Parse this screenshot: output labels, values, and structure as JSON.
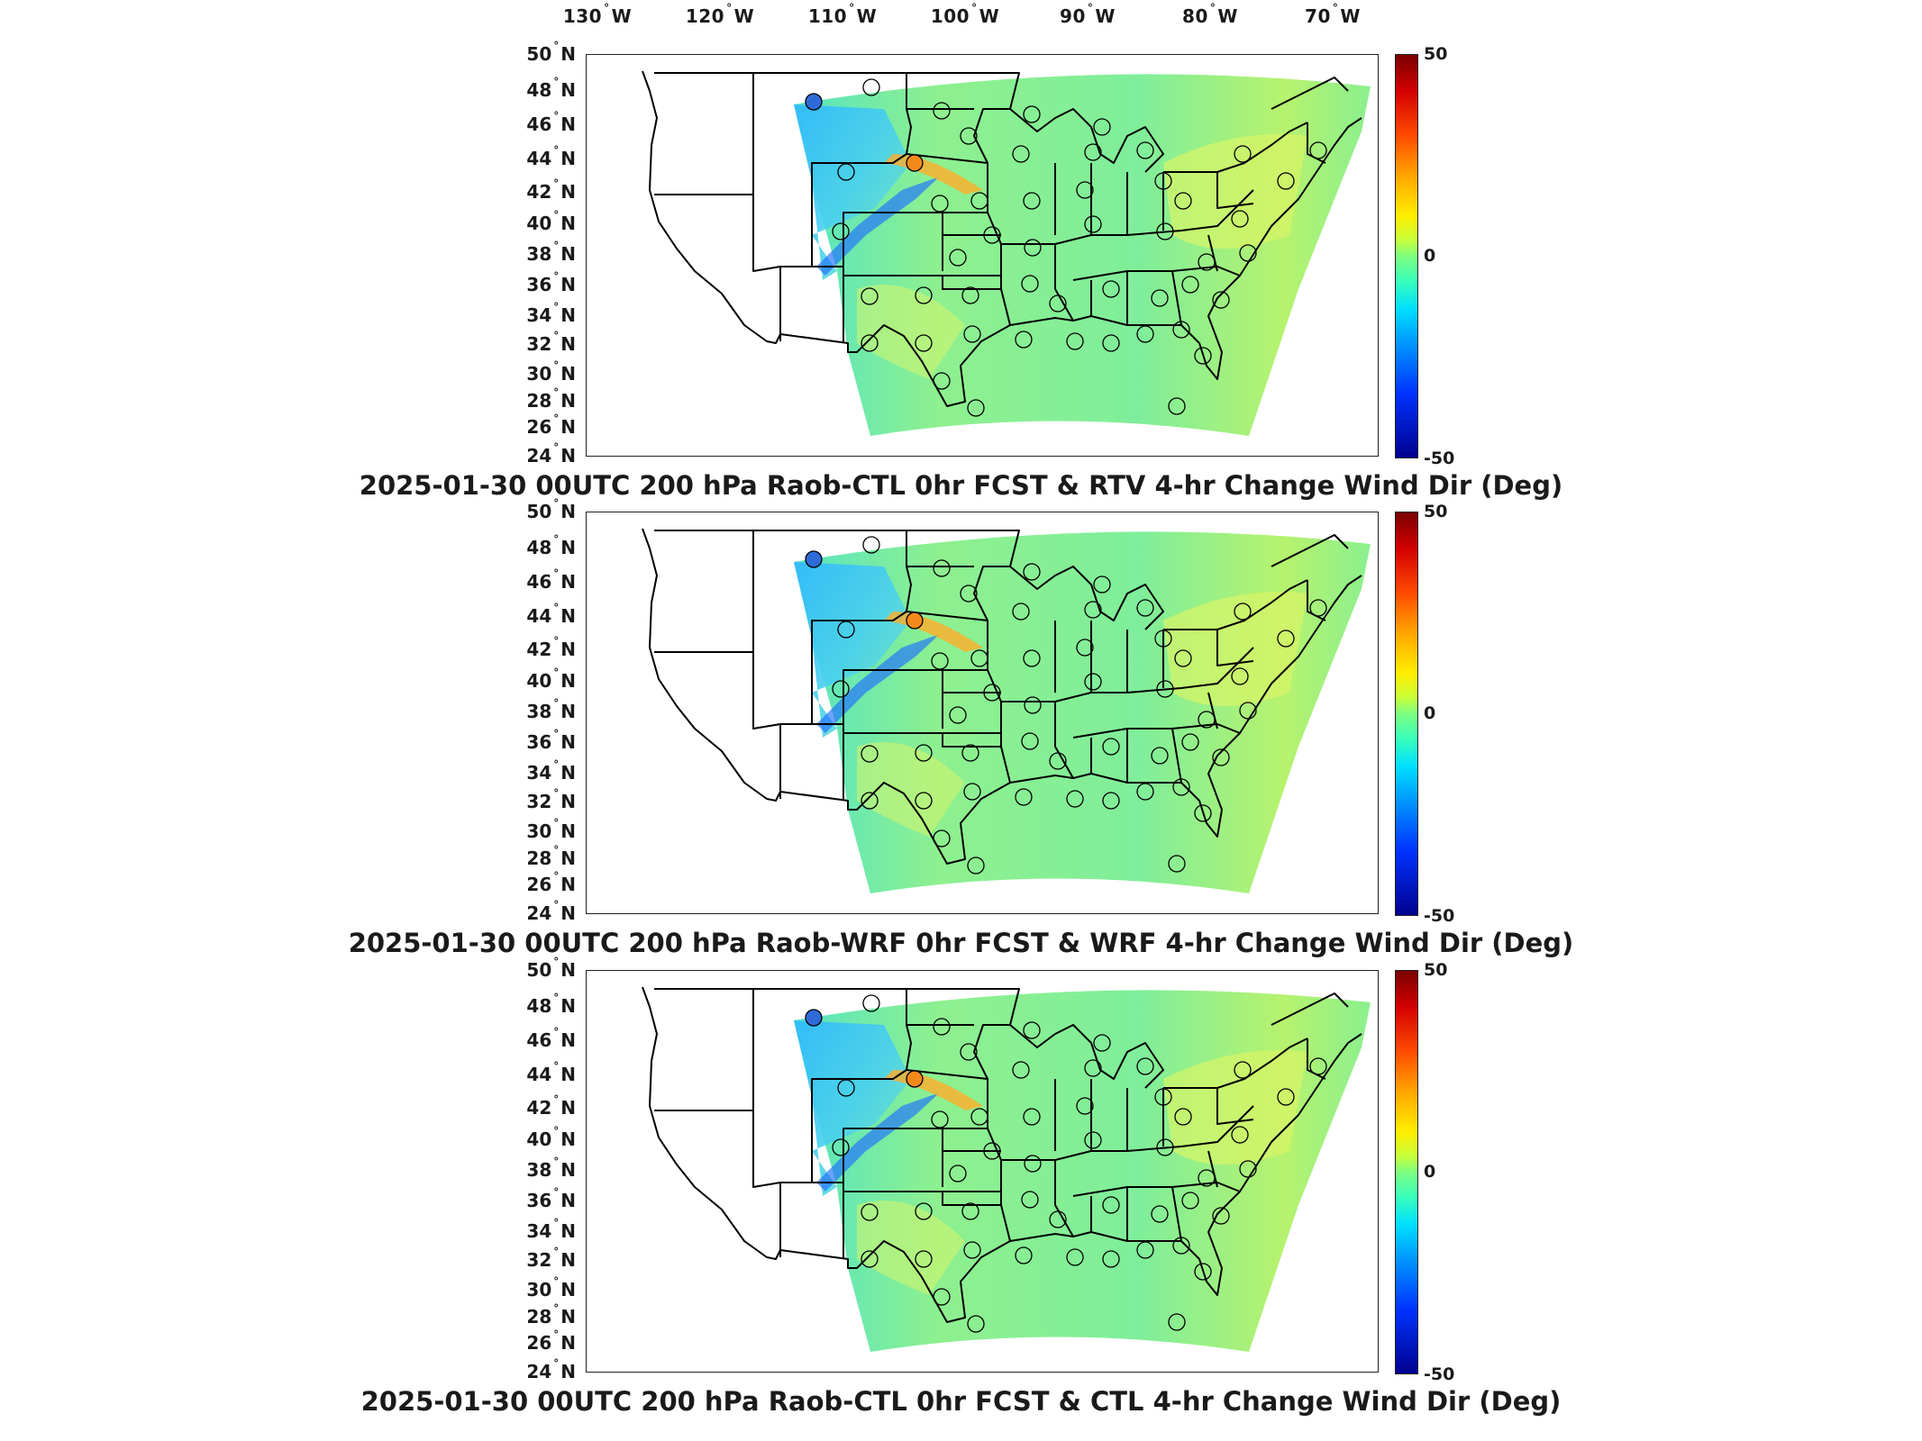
{
  "longitude_labels": [
    "130",
    "120",
    "110",
    "100",
    "90",
    "80",
    "70"
  ],
  "longitude_suffix": "W",
  "latitude_labels": [
    "50",
    "48",
    "46",
    "44",
    "42",
    "40",
    "38",
    "36",
    "34",
    "32",
    "30",
    "28",
    "26",
    "24"
  ],
  "latitude_suffix": "N",
  "degree_symbol": "°",
  "colorbar": {
    "max": "50",
    "mid": "0",
    "min": "-50",
    "colors": [
      "#7a0000",
      "#ff4a00",
      "#ffee00",
      "#7dff80",
      "#00e0ff",
      "#0033ff",
      "#00008f"
    ]
  },
  "panels": [
    {
      "title": "2025-01-30 00UTC 200 hPa Raob-CTL 0hr FCST & RTV 4-hr Change Wind Dir (Deg)",
      "stations_colored": [
        "blue",
        "orange"
      ]
    },
    {
      "title": "2025-01-30 00UTC 200 hPa Raob-WRF 0hr FCST & WRF 4-hr Change Wind Dir (Deg)",
      "stations_colored": [
        "blue",
        "orange"
      ]
    },
    {
      "title": "2025-01-30 00UTC 200 hPa Raob-CTL 0hr FCST & CTL 4-hr Change Wind Dir (Deg)",
      "stations_colored": [
        "blue",
        "orange"
      ]
    }
  ]
}
